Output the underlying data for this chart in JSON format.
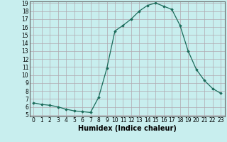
{
  "x": [
    0,
    1,
    2,
    3,
    4,
    5,
    6,
    7,
    8,
    9,
    10,
    11,
    12,
    13,
    14,
    15,
    16,
    17,
    18,
    19,
    20,
    21,
    22,
    23
  ],
  "y": [
    6.5,
    6.3,
    6.2,
    6.0,
    5.7,
    5.5,
    5.4,
    5.3,
    7.2,
    10.8,
    15.5,
    16.2,
    17.0,
    18.0,
    18.7,
    19.0,
    18.6,
    18.2,
    16.2,
    13.0,
    10.7,
    9.3,
    8.3,
    7.7
  ],
  "xlabel": "Humidex (Indice chaleur)",
  "ylim": [
    5,
    19
  ],
  "xlim": [
    -0.5,
    23.5
  ],
  "yticks": [
    5,
    6,
    7,
    8,
    9,
    10,
    11,
    12,
    13,
    14,
    15,
    16,
    17,
    18,
    19
  ],
  "xticks": [
    0,
    1,
    2,
    3,
    4,
    5,
    6,
    7,
    8,
    9,
    10,
    11,
    12,
    13,
    14,
    15,
    16,
    17,
    18,
    19,
    20,
    21,
    22,
    23
  ],
  "line_color": "#1a6b5a",
  "marker": "D",
  "marker_size": 1.8,
  "bg_color": "#c8eeee",
  "grid_color": "#b0a8b0",
  "xlabel_fontsize": 7,
  "tick_fontsize": 5.5,
  "xlabel_fontweight": "bold"
}
